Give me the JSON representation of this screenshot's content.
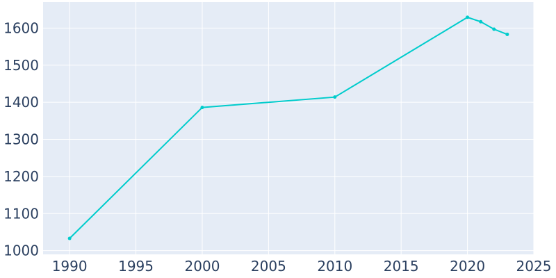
{
  "chart_data": {
    "type": "line",
    "title": "",
    "xlabel": "",
    "ylabel": "",
    "xlim": [
      1988,
      2025
    ],
    "ylim": [
      990,
      1670
    ],
    "x_ticks": [
      1990,
      1995,
      2000,
      2005,
      2010,
      2015,
      2020,
      2025
    ],
    "y_ticks": [
      1000,
      1100,
      1200,
      1300,
      1400,
      1500,
      1600
    ],
    "grid": true,
    "legend": "none",
    "colors": {
      "line": "#00cccc",
      "plot_bg": "#e5ecf6",
      "text": "#2a3f5f",
      "grid": "#ffffff"
    },
    "series": [
      {
        "x": [
          1990,
          2000,
          2010,
          2020,
          2021,
          2022,
          2023
        ],
        "y": [
          1033,
          1386,
          1414,
          1629,
          1617,
          1597,
          1583
        ]
      }
    ]
  }
}
